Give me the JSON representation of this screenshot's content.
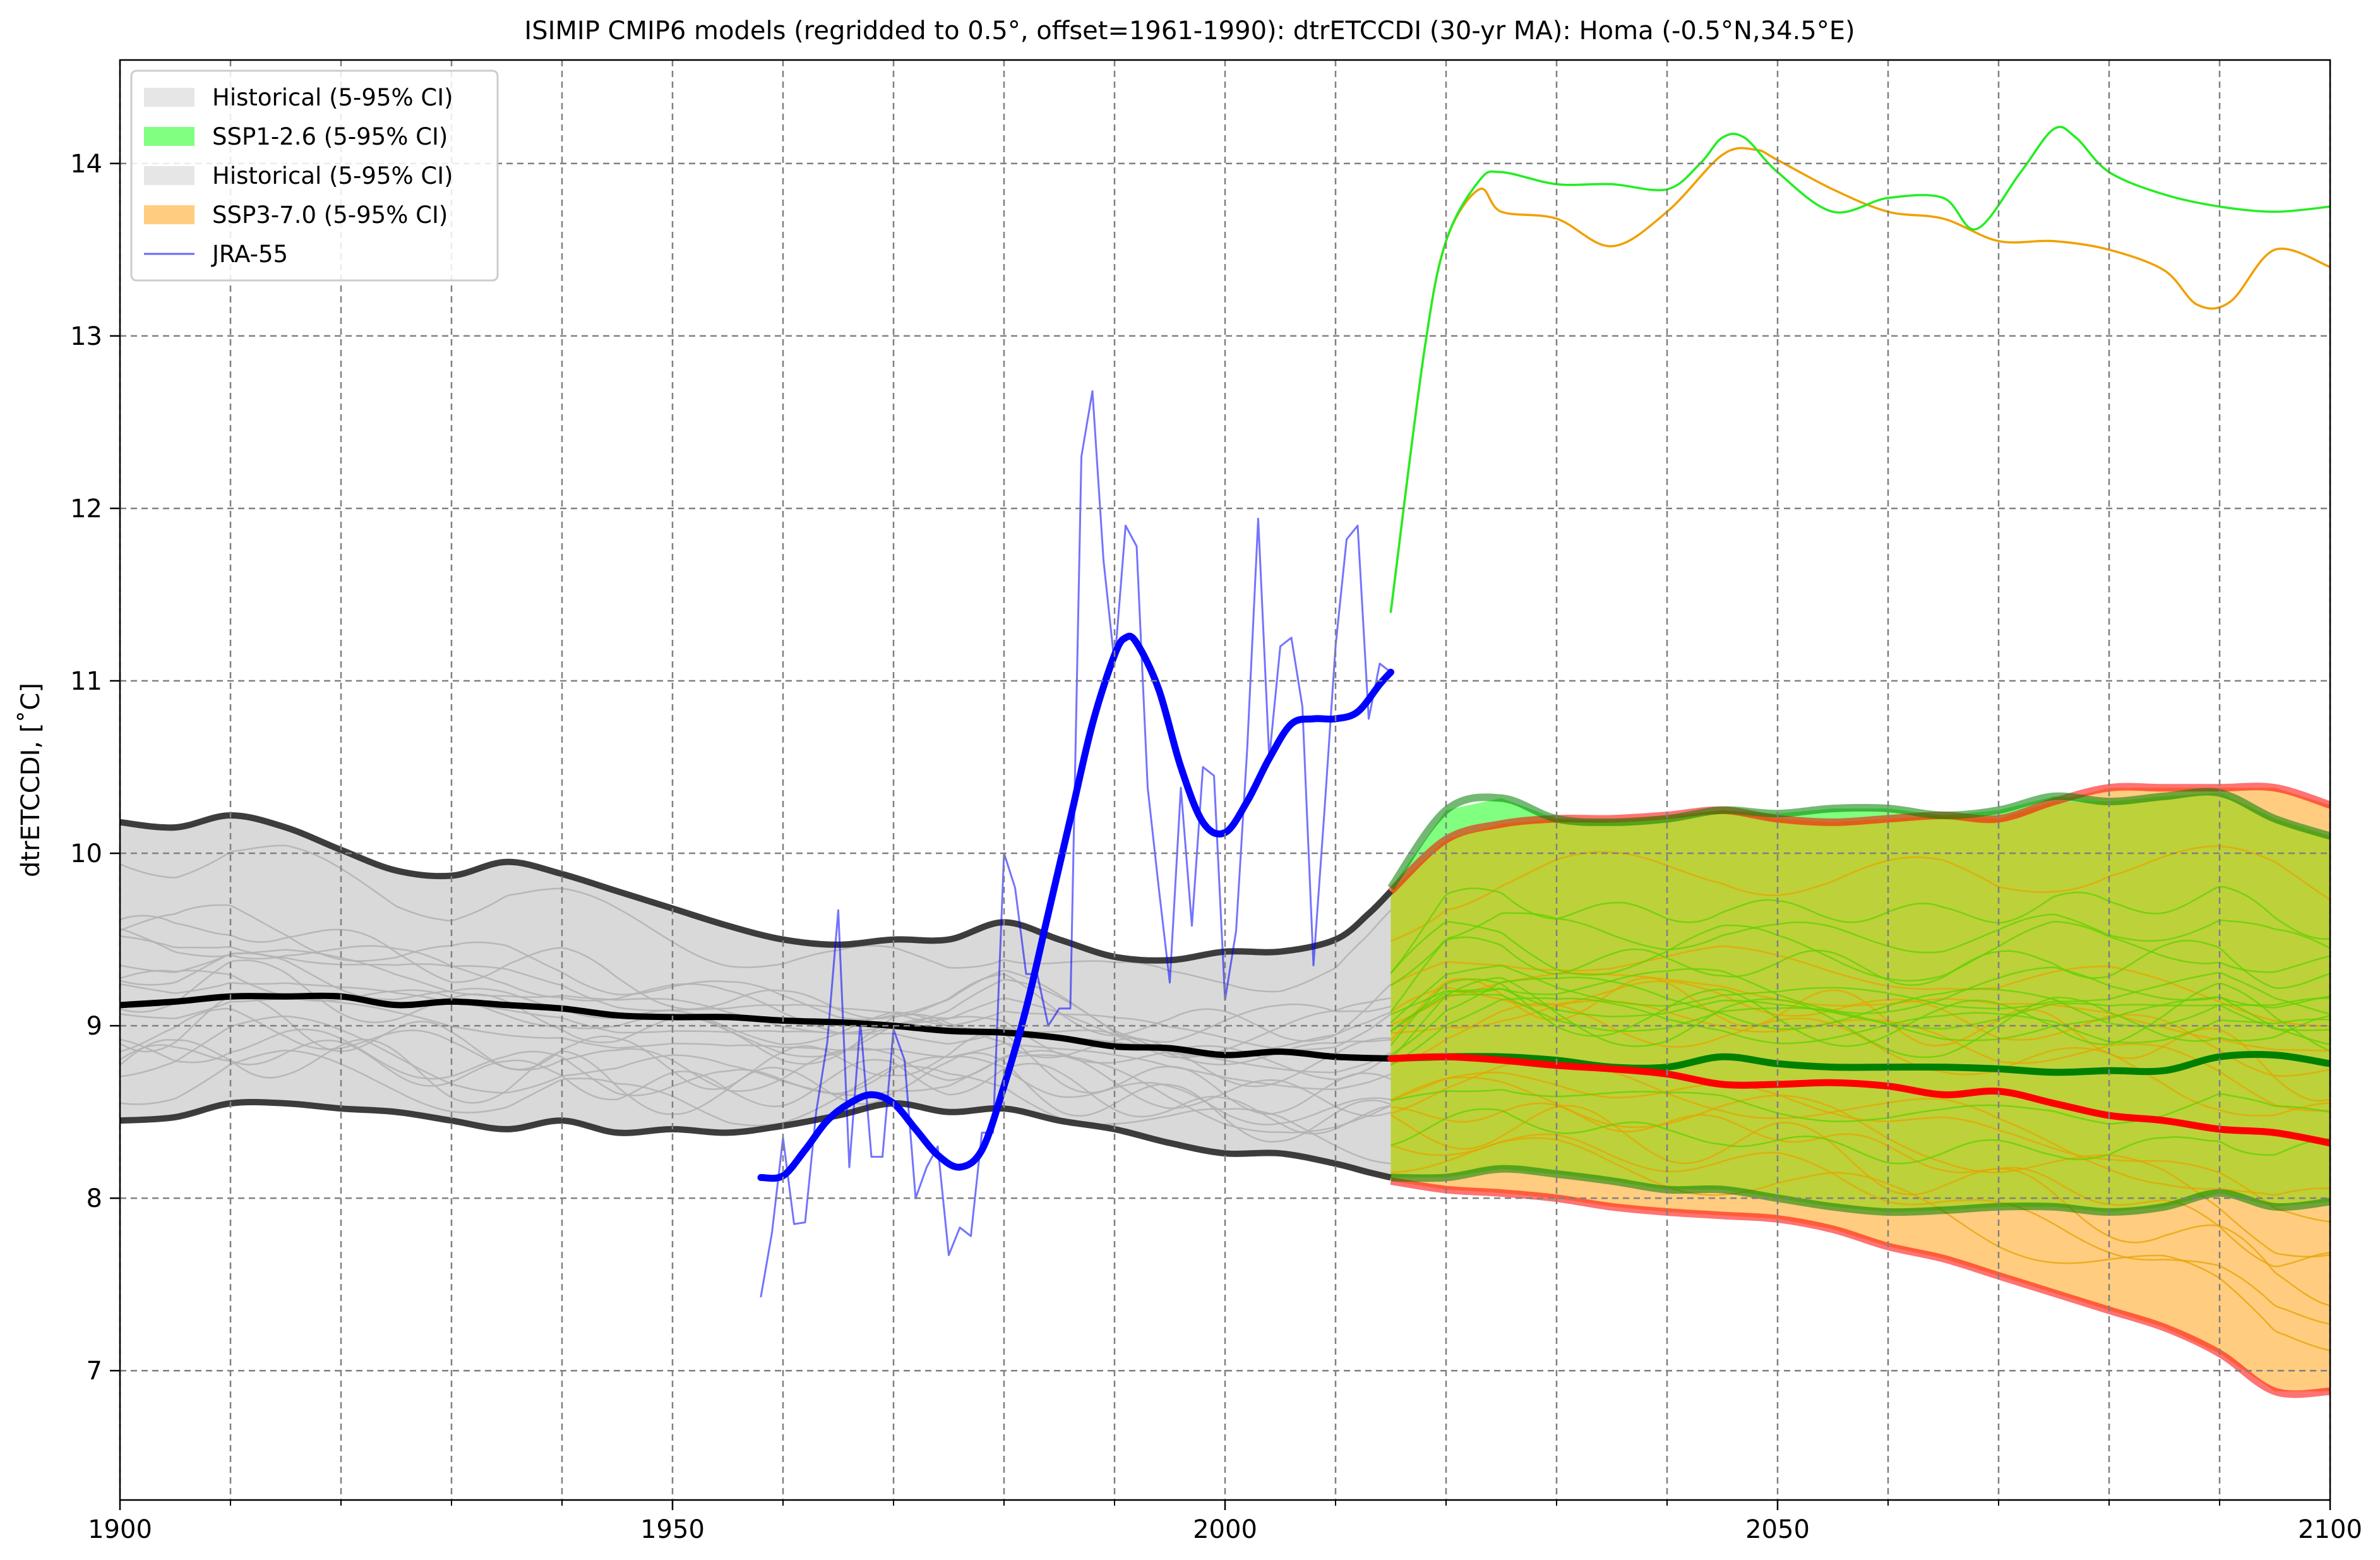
{
  "chart_data": {
    "type": "line",
    "title": "ISIMIP CMIP6 models (regridded to 0.5°, offset=1961-1990): dtrETCCDI (30-yr MA): Homa (-0.5°N,34.5°E)",
    "xlabel": "",
    "ylabel": "dtrETCCDI, [˚C]",
    "xlim": [
      1900,
      2100
    ],
    "ylim": [
      6.25,
      14.6
    ],
    "xticks": [
      1900,
      1950,
      2000,
      2050,
      2100
    ],
    "xminor": [
      1910,
      1920,
      1930,
      1940,
      1960,
      1970,
      1980,
      1990,
      2010,
      2020,
      2030,
      2040,
      2060,
      2070,
      2080,
      2090
    ],
    "yticks": [
      7,
      8,
      9,
      10,
      11,
      12,
      13,
      14
    ],
    "grid": true,
    "legend_position": "top-left",
    "colors": {
      "historical_band": "#d9d9d9",
      "ssp126_band": "#80ff80",
      "ssp370_band": "#ffcc80",
      "overlap_band": "#bdd13a",
      "historical_lines": "#333333",
      "ssp126_lines": "#008000",
      "ssp370_lines": "#ff0000",
      "jra55": "#0000ff"
    },
    "legend": [
      {
        "label": "Historical (5-95% CI)",
        "type": "patch",
        "color": "#e6e6e6"
      },
      {
        "label": "SSP1-2.6 (5-95% CI)",
        "type": "patch",
        "color": "#80ff80"
      },
      {
        "label": "Historical (5-95% CI)",
        "type": "patch",
        "color": "#e6e6e6"
      },
      {
        "label": "SSP3-7.0 (5-95% CI)",
        "type": "patch",
        "color": "#ffcc80"
      },
      {
        "label": "JRA-55",
        "type": "line",
        "color": "#0000ff"
      }
    ],
    "bands": {
      "historical": {
        "x": [
          1900,
          1905,
          1910,
          1915,
          1920,
          1925,
          1930,
          1935,
          1940,
          1945,
          1950,
          1955,
          1960,
          1965,
          1970,
          1975,
          1980,
          1985,
          1990,
          1995,
          2000,
          2005,
          2010,
          2013,
          2015
        ],
        "upper": [
          10.18,
          10.15,
          10.22,
          10.15,
          10.02,
          9.9,
          9.87,
          9.95,
          9.88,
          9.78,
          9.68,
          9.58,
          9.5,
          9.47,
          9.5,
          9.5,
          9.6,
          9.5,
          9.4,
          9.38,
          9.43,
          9.43,
          9.5,
          9.65,
          9.78
        ],
        "lower": [
          8.45,
          8.47,
          8.55,
          8.55,
          8.52,
          8.5,
          8.45,
          8.4,
          8.45,
          8.38,
          8.4,
          8.38,
          8.42,
          8.48,
          8.55,
          8.5,
          8.52,
          8.45,
          8.4,
          8.32,
          8.26,
          8.26,
          8.2,
          8.15,
          8.12
        ]
      },
      "ssp126": {
        "x": [
          2015,
          2020,
          2025,
          2030,
          2035,
          2040,
          2045,
          2050,
          2055,
          2060,
          2065,
          2070,
          2075,
          2080,
          2085,
          2090,
          2095,
          2100
        ],
        "upper": [
          9.8,
          10.25,
          10.32,
          10.2,
          10.18,
          10.2,
          10.25,
          10.23,
          10.26,
          10.26,
          10.22,
          10.25,
          10.33,
          10.3,
          10.33,
          10.35,
          10.2,
          10.1
        ],
        "lower": [
          8.12,
          8.12,
          8.17,
          8.14,
          8.1,
          8.05,
          8.05,
          8.0,
          7.95,
          7.92,
          7.93,
          7.95,
          7.95,
          7.92,
          7.95,
          8.03,
          7.95,
          7.98
        ]
      },
      "ssp370": {
        "x": [
          2015,
          2020,
          2025,
          2030,
          2035,
          2040,
          2045,
          2050,
          2055,
          2060,
          2065,
          2070,
          2075,
          2080,
          2085,
          2090,
          2095,
          2100
        ],
        "upper": [
          9.78,
          10.08,
          10.17,
          10.2,
          10.2,
          10.22,
          10.25,
          10.2,
          10.18,
          10.2,
          10.22,
          10.2,
          10.3,
          10.38,
          10.38,
          10.38,
          10.38,
          10.28
        ],
        "lower": [
          8.1,
          8.05,
          8.03,
          8.0,
          7.95,
          7.92,
          7.9,
          7.88,
          7.82,
          7.72,
          7.65,
          7.55,
          7.45,
          7.35,
          7.25,
          7.1,
          6.88,
          6.88
        ]
      }
    },
    "series": [
      {
        "name": "JRA-55",
        "x": [
          1958,
          1959,
          1960,
          1961,
          1962,
          1963,
          1964,
          1965,
          1966,
          1967,
          1968,
          1969,
          1970,
          1971,
          1972,
          1973,
          1974,
          1975,
          1976,
          1977,
          1978,
          1979,
          1980,
          1981,
          1982,
          1983,
          1984,
          1985,
          1986,
          1987,
          1988,
          1989,
          1990,
          1991,
          1992,
          1993,
          1994,
          1995,
          1996,
          1997,
          1998,
          1999,
          2000,
          2001,
          2002,
          2003,
          2004,
          2005,
          2006,
          2007,
          2008,
          2009,
          2010,
          2011,
          2012,
          2013,
          2014,
          2015
        ],
        "y": [
          7.43,
          7.8,
          8.35,
          7.85,
          7.86,
          8.5,
          8.9,
          9.67,
          8.18,
          9.02,
          8.24,
          8.24,
          8.98,
          8.8,
          8.0,
          8.18,
          8.3,
          7.67,
          7.83,
          7.78,
          8.38,
          8.38,
          10.0,
          9.8,
          9.3,
          9.3,
          9.0,
          9.1,
          9.1,
          12.3,
          12.68,
          11.7,
          11.1,
          11.9,
          11.78,
          10.38,
          9.8,
          9.25,
          10.38,
          9.58,
          10.5,
          10.45,
          9.15,
          9.55,
          10.6,
          11.94,
          10.55,
          11.2,
          11.25,
          10.85,
          9.35,
          10.25,
          11.2,
          11.82,
          11.9,
          10.78,
          11.1,
          11.05
        ]
      },
      {
        "name": "JRA-55 (30-yr MA)",
        "style": "thick",
        "x": [
          1958,
          1960,
          1962,
          1964,
          1966,
          1968,
          1970,
          1972,
          1974,
          1976,
          1978,
          1980,
          1982,
          1984,
          1986,
          1988,
          1990,
          1991,
          1992,
          1994,
          1996,
          1998,
          2000,
          2002,
          2004,
          2006,
          2008,
          2010,
          2012,
          2014,
          2015
        ],
        "y": [
          8.12,
          8.13,
          8.28,
          8.45,
          8.55,
          8.6,
          8.55,
          8.4,
          8.25,
          8.18,
          8.28,
          8.65,
          9.1,
          9.65,
          10.2,
          10.75,
          11.15,
          11.25,
          11.22,
          10.95,
          10.5,
          10.18,
          10.12,
          10.3,
          10.55,
          10.75,
          10.78,
          10.78,
          10.82,
          10.98,
          11.05
        ]
      },
      {
        "name": "Historical median",
        "x": [
          1900,
          1905,
          1910,
          1915,
          1920,
          1925,
          1930,
          1935,
          1940,
          1945,
          1950,
          1955,
          1960,
          1965,
          1970,
          1975,
          1980,
          1985,
          1990,
          1995,
          2000,
          2005,
          2010,
          2015
        ],
        "y": [
          9.12,
          9.14,
          9.17,
          9.17,
          9.17,
          9.12,
          9.14,
          9.12,
          9.1,
          9.06,
          9.05,
          9.05,
          9.03,
          9.02,
          9.0,
          8.97,
          8.96,
          8.93,
          8.88,
          8.87,
          8.83,
          8.85,
          8.82,
          8.81
        ]
      },
      {
        "name": "SSP1-2.6 median",
        "x": [
          2015,
          2020,
          2025,
          2030,
          2035,
          2040,
          2045,
          2050,
          2055,
          2060,
          2065,
          2070,
          2075,
          2080,
          2085,
          2090,
          2095,
          2100
        ],
        "y": [
          8.81,
          8.82,
          8.82,
          8.8,
          8.76,
          8.76,
          8.82,
          8.78,
          8.76,
          8.76,
          8.76,
          8.75,
          8.73,
          8.74,
          8.74,
          8.82,
          8.83,
          8.78
        ]
      },
      {
        "name": "SSP3-7.0 median",
        "x": [
          2015,
          2020,
          2025,
          2030,
          2035,
          2040,
          2045,
          2050,
          2055,
          2060,
          2065,
          2070,
          2075,
          2080,
          2085,
          2090,
          2095,
          2100
        ],
        "y": [
          8.81,
          8.82,
          8.8,
          8.77,
          8.75,
          8.72,
          8.66,
          8.66,
          8.67,
          8.65,
          8.6,
          8.62,
          8.55,
          8.48,
          8.45,
          8.4,
          8.38,
          8.32
        ]
      },
      {
        "name": "SSP1-2.6 outlier",
        "x": [
          2015,
          2018,
          2020,
          2023,
          2025,
          2030,
          2035,
          2040,
          2043,
          2045,
          2047,
          2050,
          2055,
          2060,
          2065,
          2068,
          2072,
          2075,
          2077,
          2080,
          2085,
          2090,
          2095,
          2100
        ],
        "y": [
          11.4,
          12.9,
          13.55,
          13.9,
          13.95,
          13.88,
          13.88,
          13.85,
          14.0,
          14.15,
          14.15,
          13.95,
          13.72,
          13.8,
          13.8,
          13.62,
          13.95,
          14.2,
          14.15,
          13.95,
          13.82,
          13.75,
          13.72,
          13.75
        ]
      },
      {
        "name": "SSP3-7.0 outlier",
        "x": [
          2015,
          2018,
          2020,
          2023,
          2025,
          2030,
          2035,
          2040,
          2045,
          2048,
          2050,
          2055,
          2060,
          2065,
          2070,
          2075,
          2080,
          2085,
          2088,
          2091,
          2095,
          2100
        ],
        "y": [
          11.4,
          12.9,
          13.55,
          13.85,
          13.72,
          13.68,
          13.52,
          13.72,
          14.05,
          14.08,
          14.02,
          13.85,
          13.72,
          13.68,
          13.55,
          13.55,
          13.5,
          13.38,
          13.18,
          13.2,
          13.5,
          13.4
        ]
      }
    ]
  }
}
